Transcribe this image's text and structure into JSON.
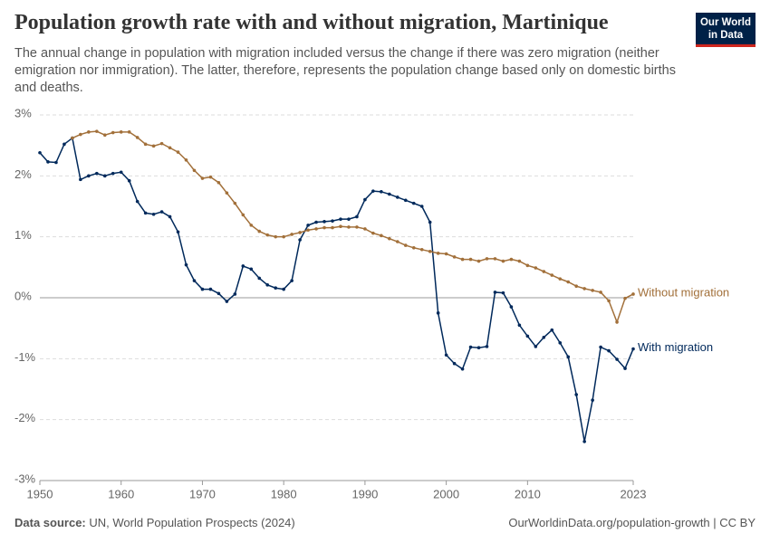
{
  "chart_data": {
    "type": "line",
    "title": "Population growth rate with and without migration, Martinique",
    "subtitle": "The annual change in population with migration included versus the change if there was zero migration (neither emigration nor immigration). The latter, therefore, represents the population change based only on domestic births and deaths.",
    "logo": [
      "Our World",
      "in Data"
    ],
    "source_label": "Data source:",
    "source": "UN, World Population Prospects (2024)",
    "footer": "OurWorldinData.org/population-growth | CC BY",
    "x": [
      1950,
      1951,
      1952,
      1953,
      1954,
      1955,
      1956,
      1957,
      1958,
      1959,
      1960,
      1961,
      1962,
      1963,
      1964,
      1965,
      1966,
      1967,
      1968,
      1969,
      1970,
      1971,
      1972,
      1973,
      1974,
      1975,
      1976,
      1977,
      1978,
      1979,
      1980,
      1981,
      1982,
      1983,
      1984,
      1985,
      1986,
      1987,
      1988,
      1989,
      1990,
      1991,
      1992,
      1993,
      1994,
      1995,
      1996,
      1997,
      1998,
      1999,
      2000,
      2001,
      2002,
      2003,
      2004,
      2005,
      2006,
      2007,
      2008,
      2009,
      2010,
      2011,
      2012,
      2013,
      2014,
      2015,
      2016,
      2017,
      2018,
      2019,
      2020,
      2021,
      2022,
      2023
    ],
    "series": [
      {
        "name": "With migration",
        "color": "#00295b",
        "values": [
          2.38,
          2.23,
          2.22,
          2.52,
          2.62,
          1.94,
          2.0,
          2.04,
          2.0,
          2.04,
          2.06,
          1.92,
          1.58,
          1.39,
          1.37,
          1.41,
          1.33,
          1.08,
          0.54,
          0.28,
          0.14,
          0.14,
          0.07,
          -0.06,
          0.06,
          0.52,
          0.47,
          0.32,
          0.21,
          0.16,
          0.14,
          0.28,
          0.95,
          1.19,
          1.24,
          1.25,
          1.26,
          1.29,
          1.29,
          1.33,
          1.61,
          1.75,
          1.74,
          1.7,
          1.65,
          1.6,
          1.55,
          1.5,
          1.24,
          -0.25,
          -0.94,
          -1.08,
          -1.17,
          -0.81,
          -0.82,
          -0.8,
          0.09,
          0.08,
          -0.15,
          -0.45,
          -0.63,
          -0.8,
          -0.65,
          -0.53,
          -0.74,
          -0.97,
          -1.59,
          -2.36,
          -1.68,
          -0.81,
          -0.87,
          -1.01,
          -1.16,
          -0.84
        ]
      },
      {
        "name": "Without migration",
        "color": "#a2703a",
        "values": [
          null,
          null,
          null,
          null,
          2.62,
          2.68,
          2.72,
          2.73,
          2.67,
          2.71,
          2.72,
          2.72,
          2.63,
          2.52,
          2.49,
          2.53,
          2.46,
          2.39,
          2.26,
          2.09,
          1.96,
          1.98,
          1.89,
          1.72,
          1.55,
          1.36,
          1.19,
          1.09,
          1.03,
          1.0,
          1.0,
          1.04,
          1.07,
          1.11,
          1.13,
          1.15,
          1.15,
          1.17,
          1.16,
          1.16,
          1.13,
          1.06,
          1.02,
          0.97,
          0.92,
          0.86,
          0.82,
          0.79,
          0.76,
          0.73,
          0.72,
          0.67,
          0.63,
          0.63,
          0.6,
          0.64,
          0.64,
          0.6,
          0.63,
          0.6,
          0.53,
          0.49,
          0.43,
          0.37,
          0.31,
          0.26,
          0.19,
          0.15,
          0.12,
          0.09,
          -0.05,
          -0.4,
          -0.01,
          0.06
        ]
      }
    ],
    "xlim": [
      1950,
      2023
    ],
    "xticks": [
      1950,
      1960,
      1970,
      1980,
      1990,
      2000,
      2010,
      2023
    ],
    "ylim": [
      -3,
      3
    ],
    "yticks": [
      {
        "value": -3,
        "label": "-3%"
      },
      {
        "value": -2,
        "label": "-2%"
      },
      {
        "value": -1,
        "label": "-1%"
      },
      {
        "value": 0,
        "label": "0%"
      },
      {
        "value": 1,
        "label": "1%"
      },
      {
        "value": 2,
        "label": "2%"
      },
      {
        "value": 3,
        "label": "3%"
      }
    ],
    "grid": true
  }
}
